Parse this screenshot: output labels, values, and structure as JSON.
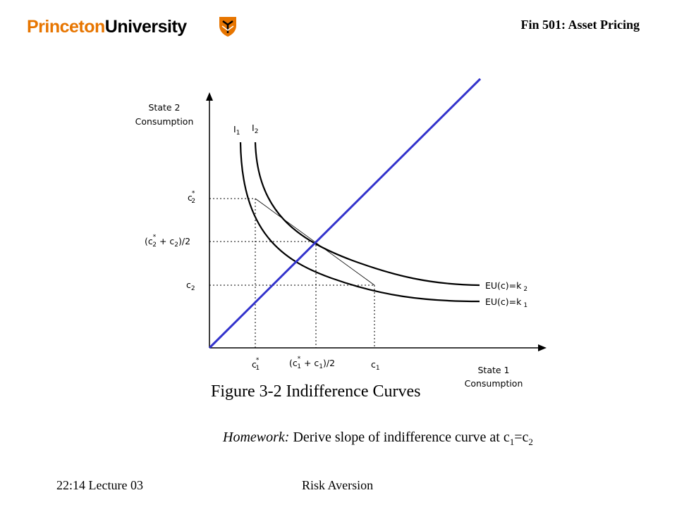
{
  "header": {
    "logo_part1": "Princeton",
    "logo_part2": "University",
    "course_title": "Fin 501: Asset Pricing"
  },
  "figure": {
    "y_axis_label_line1": "State 2",
    "y_axis_label_line2": "Consumption",
    "x_axis_label_line1": "State 1",
    "x_axis_label_line2": "Consumption",
    "curve_label_I1": "I",
    "curve_label_I1_sub": "1",
    "curve_label_I2": "I",
    "curve_label_I2_sub": "2",
    "y_tick_c2_star": "c",
    "y_tick_c2_star_sup": "*",
    "y_tick_c2_star_sub": "2",
    "y_tick_mid_open": "(c",
    "y_tick_mid_sup": "*",
    "y_tick_mid_sub1": "2",
    "y_tick_mid_plus": " + c",
    "y_tick_mid_sub2": "2",
    "y_tick_mid_close": ")/2",
    "y_tick_c2": "c",
    "y_tick_c2_sub": "2",
    "x_tick_c1_star": "c",
    "x_tick_c1_star_sup": "*",
    "x_tick_c1_star_sub": "1",
    "x_tick_mid_open": "(c",
    "x_tick_mid_sup": "*",
    "x_tick_mid_sub1": "1",
    "x_tick_mid_plus": " + c",
    "x_tick_mid_sub2": "1",
    "x_tick_mid_close": ")/2",
    "x_tick_c1": "c",
    "x_tick_c1_sub": "1",
    "curve_eq_k2": "EU(c)=k",
    "curve_eq_k2_sub": "2",
    "curve_eq_k1": "EU(c)=k",
    "curve_eq_k1_sub": "1"
  },
  "caption": "Figure 3-2 Indifference Curves",
  "homework": {
    "label": "Homework:",
    "text": " Derive slope of indifference curve at c",
    "sub1": "1",
    "eq": "=c",
    "sub2": "2"
  },
  "footer": {
    "left": "22:14 Lecture 03",
    "center": "Risk Aversion"
  },
  "colors": {
    "princeton_orange": "#e77500",
    "certainty_line": "#3333cc"
  }
}
